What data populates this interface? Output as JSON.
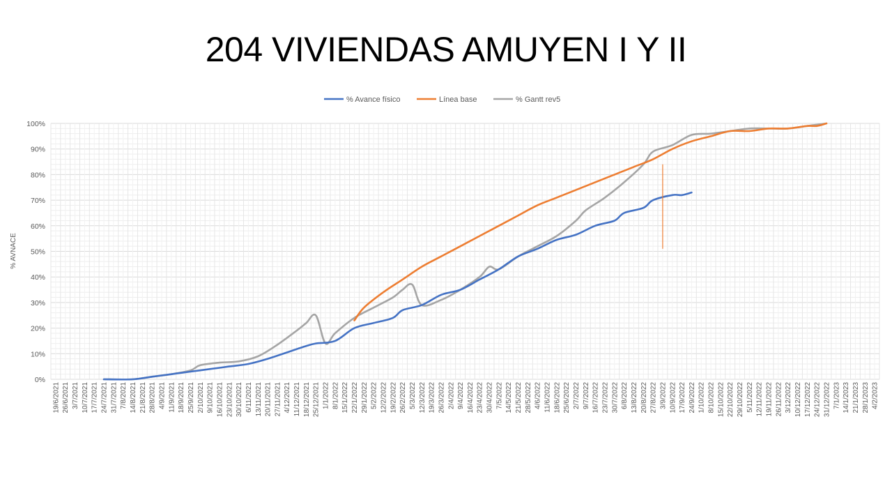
{
  "slide": {
    "title": "204 VIVIENDAS AMUYEN I Y II"
  },
  "chart_data": {
    "type": "line",
    "title": "204 VIVIENDAS AMUYEN I Y II",
    "ylabel": "% AVNACE",
    "xlabel": "",
    "ylim": [
      0,
      100
    ],
    "y_ticks": [
      "0%",
      "10%",
      "20%",
      "30%",
      "40%",
      "50%",
      "60%",
      "70%",
      "80%",
      "90%",
      "100%"
    ],
    "x_ticks": [
      "19/6/2021",
      "26/6/2021",
      "3/7/2021",
      "10/7/2021",
      "17/7/2021",
      "24/7/2021",
      "31/7/2021",
      "7/8/2021",
      "14/8/2021",
      "21/8/2021",
      "28/8/2021",
      "4/9/2021",
      "11/9/2021",
      "18/9/2021",
      "25/9/2021",
      "2/10/2021",
      "9/10/2021",
      "16/10/2021",
      "23/10/2021",
      "30/10/2021",
      "6/11/2021",
      "13/11/2021",
      "20/11/2021",
      "27/11/2021",
      "4/12/2021",
      "11/12/2021",
      "18/12/2021",
      "25/12/2021",
      "1/1/2022",
      "8/1/2022",
      "15/1/2022",
      "22/1/2022",
      "29/1/2022",
      "5/2/2022",
      "12/2/2022",
      "19/2/2022",
      "26/2/2022",
      "5/3/2022",
      "12/3/2022",
      "19/3/2022",
      "26/3/2022",
      "2/4/2022",
      "9/4/2022",
      "16/4/2022",
      "23/4/2022",
      "30/4/2022",
      "7/5/2022",
      "14/5/2022",
      "21/5/2022",
      "28/5/2022",
      "4/6/2022",
      "11/6/2022",
      "18/6/2022",
      "25/6/2022",
      "2/7/2022",
      "9/7/2022",
      "16/7/2022",
      "23/7/2022",
      "30/7/2022",
      "6/8/2022",
      "13/8/2022",
      "20/8/2022",
      "27/8/2022",
      "3/9/2022",
      "10/9/2022",
      "17/9/2022",
      "24/9/2022",
      "1/10/2022",
      "8/10/2022",
      "15/10/2022",
      "22/10/2022",
      "29/10/2022",
      "5/11/2022",
      "12/11/2022",
      "19/11/2022",
      "26/11/2022",
      "3/12/2022",
      "10/12/2022",
      "17/12/2022",
      "24/12/2022",
      "31/12/2022",
      "7/1/2023",
      "14/1/2023",
      "21/1/2023",
      "28/1/2023",
      "4/2/2023"
    ],
    "grid": true,
    "legend_position": "top",
    "series": [
      {
        "name": "% Avance físico",
        "color": "#4472C4",
        "points": [
          [
            "24/7/2021",
            0
          ],
          [
            "14/8/2021",
            0
          ],
          [
            "28/8/2021",
            1
          ],
          [
            "11/9/2021",
            2
          ],
          [
            "25/9/2021",
            3
          ],
          [
            "9/10/2021",
            4
          ],
          [
            "23/10/2021",
            5
          ],
          [
            "6/11/2021",
            6
          ],
          [
            "20/11/2021",
            8
          ],
          [
            "4/12/2021",
            10.5
          ],
          [
            "18/12/2021",
            13
          ],
          [
            "25/12/2021",
            14
          ],
          [
            "8/1/2022",
            15
          ],
          [
            "22/1/2022",
            20
          ],
          [
            "5/2/2022",
            22
          ],
          [
            "19/2/2022",
            24
          ],
          [
            "26/2/2022",
            27
          ],
          [
            "12/3/2022",
            29
          ],
          [
            "26/3/2022",
            33
          ],
          [
            "9/4/2022",
            35
          ],
          [
            "23/4/2022",
            39
          ],
          [
            "7/5/2022",
            43
          ],
          [
            "21/5/2022",
            48
          ],
          [
            "4/6/2022",
            51
          ],
          [
            "18/6/2022",
            54.5
          ],
          [
            "2/7/2022",
            56.5
          ],
          [
            "16/7/2022",
            60
          ],
          [
            "30/7/2022",
            62
          ],
          [
            "6/8/2022",
            65
          ],
          [
            "20/8/2022",
            67
          ],
          [
            "27/8/2022",
            70
          ],
          [
            "10/9/2022",
            72
          ],
          [
            "17/9/2022",
            72
          ],
          [
            "24/9/2022",
            73
          ]
        ]
      },
      {
        "name": "Línea base",
        "color": "#ED7D31",
        "points": [
          [
            "22/1/2022",
            23
          ],
          [
            "29/1/2022",
            28
          ],
          [
            "12/2/2022",
            34
          ],
          [
            "26/2/2022",
            39
          ],
          [
            "12/3/2022",
            44
          ],
          [
            "26/3/2022",
            48
          ],
          [
            "9/4/2022",
            52
          ],
          [
            "23/4/2022",
            56
          ],
          [
            "7/5/2022",
            60
          ],
          [
            "21/5/2022",
            64
          ],
          [
            "4/6/2022",
            68
          ],
          [
            "18/6/2022",
            71
          ],
          [
            "2/7/2022",
            74
          ],
          [
            "16/7/2022",
            77
          ],
          [
            "30/7/2022",
            80
          ],
          [
            "13/8/2022",
            83
          ],
          [
            "27/8/2022",
            86
          ],
          [
            "10/9/2022",
            90
          ],
          [
            "24/9/2022",
            93
          ],
          [
            "8/10/2022",
            95
          ],
          [
            "22/10/2022",
            97
          ],
          [
            "5/11/2022",
            97
          ],
          [
            "19/11/2022",
            98
          ],
          [
            "3/12/2022",
            98
          ],
          [
            "17/12/2022",
            99
          ],
          [
            "24/12/2022",
            99
          ],
          [
            "31/12/2022",
            100
          ]
        ]
      },
      {
        "name": "% Gantt rev5",
        "color": "#A5A5A5",
        "points": [
          [
            "24/7/2021",
            0
          ],
          [
            "14/8/2021",
            0
          ],
          [
            "28/8/2021",
            1
          ],
          [
            "11/9/2021",
            2
          ],
          [
            "25/9/2021",
            3.5
          ],
          [
            "2/10/2021",
            5.5
          ],
          [
            "16/10/2021",
            6.5
          ],
          [
            "30/10/2021",
            7
          ],
          [
            "13/11/2021",
            9
          ],
          [
            "27/11/2021",
            13.5
          ],
          [
            "11/12/2021",
            19
          ],
          [
            "18/12/2021",
            22
          ],
          [
            "25/12/2021",
            25
          ],
          [
            "1/1/2022",
            14
          ],
          [
            "8/1/2022",
            18
          ],
          [
            "22/1/2022",
            24
          ],
          [
            "5/2/2022",
            28
          ],
          [
            "19/2/2022",
            32
          ],
          [
            "26/2/2022",
            35
          ],
          [
            "5/3/2022",
            37
          ],
          [
            "12/3/2022",
            29
          ],
          [
            "26/3/2022",
            31
          ],
          [
            "9/4/2022",
            35
          ],
          [
            "23/4/2022",
            40
          ],
          [
            "30/4/2022",
            44
          ],
          [
            "7/5/2022",
            43
          ],
          [
            "21/5/2022",
            48
          ],
          [
            "4/6/2022",
            52
          ],
          [
            "18/6/2022",
            56
          ],
          [
            "2/7/2022",
            62
          ],
          [
            "9/7/2022",
            66
          ],
          [
            "23/7/2022",
            71
          ],
          [
            "6/8/2022",
            77
          ],
          [
            "20/8/2022",
            84
          ],
          [
            "27/8/2022",
            89
          ],
          [
            "10/9/2022",
            91.5
          ],
          [
            "24/9/2022",
            95.5
          ],
          [
            "8/10/2022",
            96
          ],
          [
            "22/10/2022",
            97
          ],
          [
            "5/11/2022",
            98
          ],
          [
            "19/11/2022",
            98
          ],
          [
            "3/12/2022",
            98
          ],
          [
            "17/12/2022",
            99
          ],
          [
            "31/12/2022",
            100
          ]
        ]
      }
    ],
    "annotations": [
      {
        "type": "vertical-line",
        "x": "3/9/2022",
        "y_from": 51,
        "y_to": 84,
        "color": "#ED7D31"
      }
    ]
  }
}
